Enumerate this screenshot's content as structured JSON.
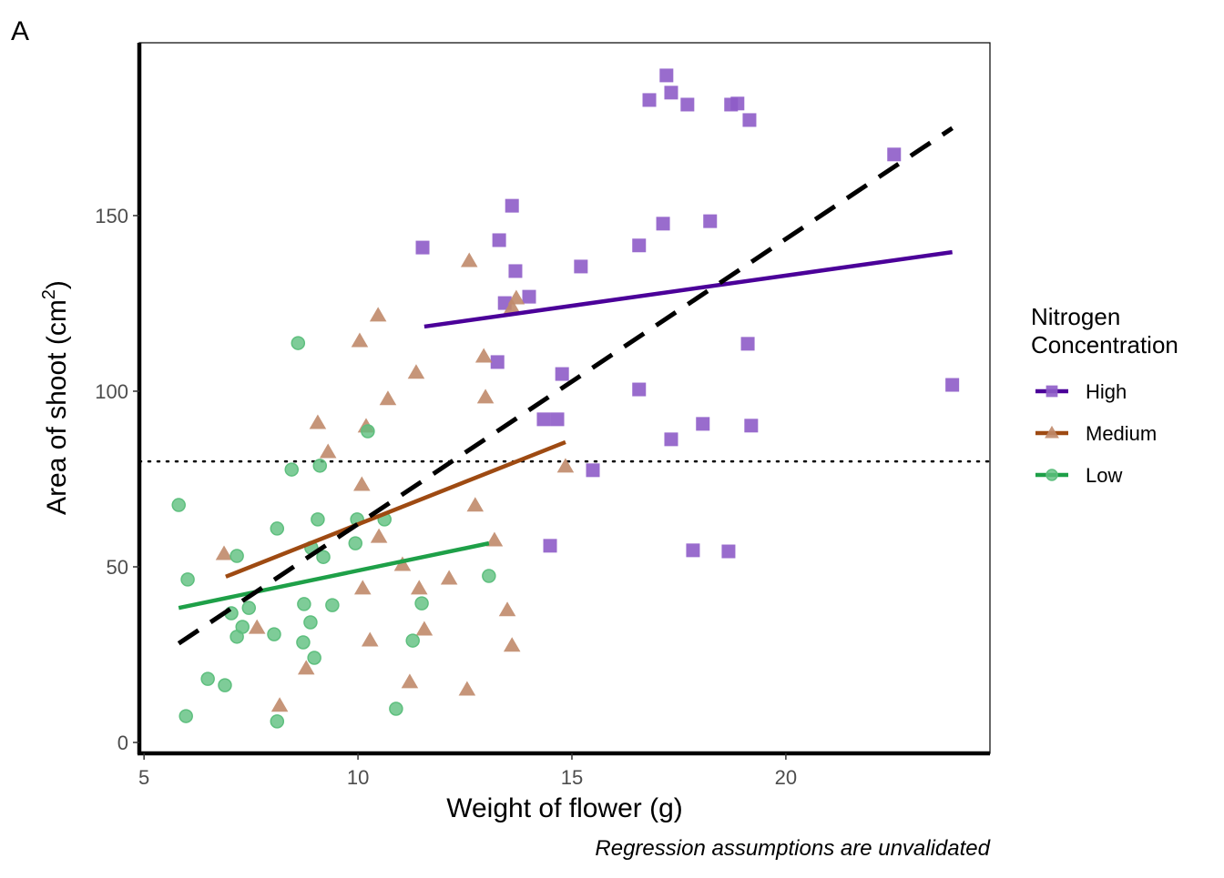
{
  "panel_label": "A",
  "chart_data": {
    "type": "scatter",
    "title": "",
    "xlabel": "Weight of flower (g)",
    "ylabel_main": "Area of shoot (cm",
    "ylabel_sup": "2",
    "ylabel_close": ")",
    "caption": "Regression assumptions are unvalidated",
    "xlim": [
      4.89,
      24.77
    ],
    "ylim": [
      -3.1,
      199.2
    ],
    "xticks": [
      5,
      10,
      15,
      20
    ],
    "yticks": [
      0,
      50,
      100,
      150
    ],
    "grid": false,
    "reference_hline": 80,
    "legend": {
      "title_line1": "Nitrogen",
      "title_line2": "Concentration",
      "placement": "right"
    },
    "series": [
      {
        "name": "High",
        "marker": "square",
        "color": "#8e5cc8",
        "line_color": "#4b0099",
        "x": [
          11.51,
          13.3,
          13.6,
          13.68,
          13.43,
          14.0,
          13.26,
          15.21,
          14.77,
          14.34,
          14.66,
          15.49,
          14.49,
          16.57,
          17.13,
          18.23,
          16.57,
          17.32,
          18.06,
          19.19,
          19.11,
          17.83,
          18.66,
          17.21,
          16.81,
          17.32,
          17.7,
          18.72,
          18.87,
          19.15,
          22.53,
          23.89
        ],
        "y": [
          140.9,
          143.0,
          152.8,
          134.2,
          125.1,
          126.9,
          108.3,
          135.5,
          104.9,
          92.0,
          92.0,
          77.5,
          56.0,
          141.5,
          147.7,
          148.4,
          100.5,
          86.3,
          90.7,
          90.2,
          113.5,
          54.7,
          54.4,
          189.9,
          182.9,
          185.0,
          181.6,
          181.6,
          181.9,
          177.2,
          167.4,
          101.8
        ],
        "fit": {
          "x": [
            11.55,
            23.89
          ],
          "y": [
            118.4,
            139.6
          ]
        }
      },
      {
        "name": "Medium",
        "marker": "triangle",
        "color": "#c08a6a",
        "line_color": "#9e4a12",
        "x": [
          12.6,
          10.47,
          13.7,
          13.6,
          10.04,
          11.36,
          12.94,
          10.7,
          12.98,
          9.06,
          10.19,
          9.3,
          14.85,
          10.09,
          12.74,
          13.19,
          6.87,
          10.49,
          11.04,
          10.11,
          11.43,
          12.13,
          7.64,
          11.55,
          13.49,
          10.28,
          13.6,
          8.79,
          11.21,
          12.55,
          8.17
        ],
        "y": [
          137.0,
          121.5,
          126.4,
          123.8,
          114.2,
          105.2,
          109.8,
          97.7,
          98.2,
          90.9,
          89.9,
          82.6,
          78.5,
          73.3,
          67.4,
          57.5,
          53.6,
          58.5,
          50.5,
          43.8,
          43.8,
          46.6,
          32.6,
          32.1,
          37.6,
          29.0,
          27.5,
          21.0,
          17.1,
          15.0,
          10.4
        ],
        "fit": {
          "x": [
            6.91,
            14.85
          ],
          "y": [
            47.2,
            85.5
          ]
        }
      },
      {
        "name": "Low",
        "marker": "circle",
        "color": "#5ebf7e",
        "line_color": "#1ea048",
        "x": [
          8.6,
          10.23,
          8.45,
          9.11,
          5.81,
          9.06,
          9.98,
          10.62,
          8.11,
          9.94,
          8.91,
          9.19,
          7.17,
          6.02,
          13.06,
          7.04,
          7.45,
          8.74,
          9.4,
          11.49,
          7.3,
          7.17,
          8.04,
          8.89,
          8.72,
          8.98,
          11.28,
          6.49,
          6.89,
          5.98,
          8.11,
          10.89
        ],
        "y": [
          113.7,
          88.6,
          77.7,
          78.8,
          67.6,
          63.5,
          63.5,
          63.5,
          60.9,
          56.7,
          55.4,
          52.8,
          53.1,
          46.4,
          47.4,
          36.8,
          38.3,
          39.4,
          39.1,
          39.6,
          32.9,
          30.1,
          30.8,
          34.2,
          28.5,
          24.1,
          29.0,
          18.1,
          16.3,
          7.5,
          6.0,
          9.6
        ],
        "fit": {
          "x": [
            5.81,
            13.06
          ],
          "y": [
            38.3,
            56.7
          ]
        }
      }
    ],
    "overall_fit": {
      "style": "dashed",
      "color": "#000000",
      "x": [
        5.81,
        23.89
      ],
      "y": [
        28.2,
        174.9
      ]
    }
  }
}
